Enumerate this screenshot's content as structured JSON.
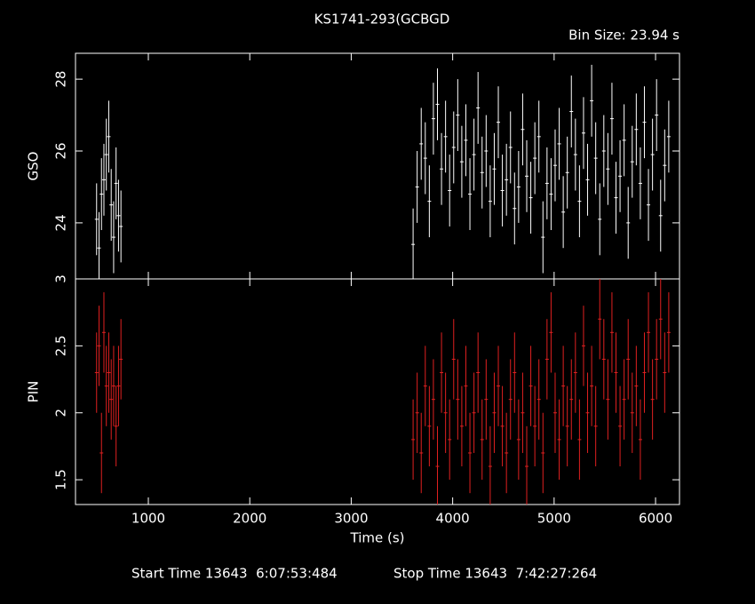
{
  "title": "KS1741-293(GCBGD",
  "bin_size": "Bin Size: 23.94 s",
  "footer": {
    "start": "Start Time 13643  6:07:53:484",
    "stop": "Stop Time 13643  7:42:27:264"
  },
  "chart_data": [
    {
      "type": "errorbar",
      "ylabel": "GSO",
      "color": "#ffffff",
      "error": 1.0,
      "xlim": [
        282,
        6236
      ],
      "xticks": [
        1000,
        2000,
        3000,
        4000,
        5000,
        6000
      ],
      "ylim": [
        22.44,
        28.72
      ],
      "yticks": [
        24,
        26,
        28
      ],
      "x": [
        490,
        514,
        538,
        562,
        586,
        610,
        634,
        658,
        682,
        706,
        730,
        3610,
        3650,
        3690,
        3730,
        3770,
        3810,
        3850,
        3890,
        3930,
        3970,
        4010,
        4050,
        4090,
        4130,
        4170,
        4210,
        4250,
        4290,
        4330,
        4370,
        4410,
        4450,
        4490,
        4530,
        4570,
        4610,
        4650,
        4690,
        4730,
        4770,
        4810,
        4850,
        4890,
        4930,
        4970,
        5010,
        5050,
        5090,
        5130,
        5170,
        5210,
        5250,
        5290,
        5330,
        5370,
        5410,
        5450,
        5490,
        5530,
        5570,
        5610,
        5650,
        5690,
        5730,
        5770,
        5810,
        5850,
        5890,
        5930,
        5970,
        6010,
        6050,
        6090,
        6130
      ],
      "values": [
        24.1,
        23.3,
        24.8,
        25.2,
        25.9,
        26.4,
        24.5,
        23.6,
        25.1,
        24.2,
        23.9,
        23.4,
        25.0,
        26.2,
        25.8,
        24.6,
        26.9,
        27.3,
        25.5,
        26.4,
        24.9,
        26.1,
        27.0,
        25.7,
        26.3,
        24.8,
        25.9,
        27.2,
        25.4,
        26.0,
        24.6,
        25.5,
        26.8,
        24.9,
        25.2,
        26.1,
        24.4,
        25.0,
        26.6,
        25.3,
        24.7,
        25.8,
        26.4,
        23.6,
        25.1,
        24.8,
        25.6,
        26.2,
        24.3,
        25.4,
        27.1,
        25.9,
        24.6,
        26.5,
        25.2,
        27.4,
        25.8,
        24.1,
        26.0,
        25.5,
        26.9,
        24.7,
        25.3,
        26.3,
        24.0,
        25.7,
        26.6,
        25.1,
        26.8,
        24.5,
        25.9,
        27.0,
        24.2,
        25.6,
        26.4
      ]
    },
    {
      "type": "errorbar",
      "ylabel": "PIN",
      "xlabel": "Time (s)",
      "color": "#e02020",
      "error": 0.3,
      "xlim": [
        282,
        6236
      ],
      "xticks": [
        1000,
        2000,
        3000,
        4000,
        5000,
        6000
      ],
      "ylim": [
        1.315,
        3.0
      ],
      "yticks": [
        1.5,
        2,
        2.5,
        3
      ],
      "x": [
        490,
        514,
        538,
        562,
        586,
        610,
        634,
        658,
        682,
        706,
        730,
        3610,
        3650,
        3690,
        3730,
        3770,
        3810,
        3850,
        3890,
        3930,
        3970,
        4010,
        4050,
        4090,
        4130,
        4170,
        4210,
        4250,
        4290,
        4330,
        4370,
        4410,
        4450,
        4490,
        4530,
        4570,
        4610,
        4650,
        4690,
        4730,
        4770,
        4810,
        4850,
        4890,
        4930,
        4970,
        5010,
        5050,
        5090,
        5130,
        5170,
        5210,
        5250,
        5290,
        5330,
        5370,
        5410,
        5450,
        5490,
        5530,
        5570,
        5610,
        5650,
        5690,
        5730,
        5770,
        5810,
        5850,
        5890,
        5930,
        5970,
        6010,
        6050,
        6090,
        6130
      ],
      "values": [
        2.3,
        2.5,
        1.7,
        2.6,
        2.2,
        2.3,
        2.1,
        2.2,
        1.9,
        2.2,
        2.4,
        1.8,
        2.0,
        1.7,
        2.2,
        1.9,
        2.1,
        1.6,
        2.3,
        2.0,
        1.8,
        2.4,
        2.1,
        1.9,
        2.2,
        1.7,
        2.0,
        2.3,
        1.8,
        2.1,
        1.6,
        2.0,
        2.2,
        1.9,
        1.7,
        2.1,
        2.3,
        1.8,
        2.0,
        1.6,
        2.2,
        1.9,
        2.1,
        1.7,
        2.4,
        2.6,
        2.0,
        1.8,
        2.2,
        1.9,
        2.1,
        2.3,
        1.8,
        2.5,
        2.0,
        2.2,
        1.9,
        2.7,
        2.4,
        2.1,
        2.6,
        2.3,
        1.9,
        2.1,
        2.4,
        2.0,
        2.2,
        1.8,
        2.3,
        2.6,
        2.1,
        2.4,
        2.7,
        2.3,
        2.6
      ]
    }
  ]
}
